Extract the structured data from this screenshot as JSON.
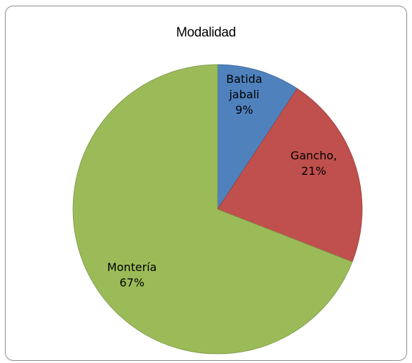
{
  "chart_data": {
    "type": "pie",
    "title": "Modalidad",
    "slices": [
      {
        "label_lines": [
          "Batida",
          "jabali",
          "9%"
        ],
        "value": 9,
        "color": "#4f81bd",
        "edge": "#3c6494"
      },
      {
        "label_lines": [
          "Gancho,",
          "21%"
        ],
        "value": 21,
        "color": "#c0504d",
        "edge": "#98403d"
      },
      {
        "label_lines": [
          "Montería",
          "67%"
        ],
        "value": 67,
        "color": "#9bbb59",
        "edge": "#7a9446"
      }
    ],
    "legend": false
  }
}
